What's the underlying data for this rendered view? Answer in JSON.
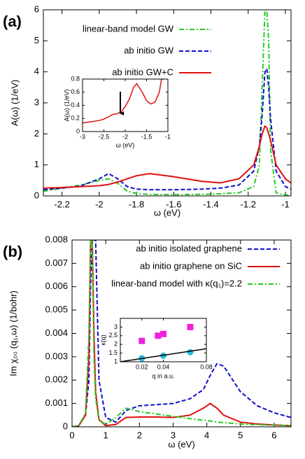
{
  "chart_data": [
    {
      "type": "line",
      "label": "(a)",
      "x_label": "ω (eV)",
      "y_label": "A(ω) (1/eV)",
      "x": [
        -2.3,
        -2.2,
        -2.1,
        -2.0,
        -1.95,
        -1.9,
        -1.85,
        -1.8,
        -1.73,
        -1.6,
        -1.45,
        -1.35,
        -1.25,
        -1.17,
        -1.14,
        -1.125,
        -1.11,
        -1.1,
        -1.09,
        -1.08,
        -1.05,
        -1.0,
        -0.97
      ],
      "xlim": [
        -2.3,
        -0.97
      ],
      "xticks": [
        -2.2,
        -2,
        -1.8,
        -1.6,
        -1.4,
        -1.2,
        -1
      ],
      "ylim": [
        0,
        6
      ],
      "yticks": [
        0,
        1,
        2,
        3,
        4,
        5,
        6
      ],
      "legend": "top-left",
      "series": [
        {
          "name": "linear-band model GW",
          "color": "#22cc22",
          "linestyle": "dashdot",
          "values": [
            0.15,
            0.25,
            0.35,
            0.5,
            0.55,
            0.4,
            0.15,
            0.08,
            0.05,
            0.04,
            0.05,
            0.07,
            0.1,
            0.3,
            1.0,
            3.5,
            6,
            6,
            5,
            1.5,
            0.1,
            0.03,
            0.02
          ]
        },
        {
          "name": "ab initio GW",
          "color": "#1010cc",
          "linestyle": "dashed",
          "values": [
            0.2,
            0.25,
            0.32,
            0.55,
            0.72,
            0.55,
            0.3,
            0.22,
            0.2,
            0.2,
            0.22,
            0.25,
            0.35,
            0.8,
            1.6,
            2.6,
            4.0,
            4.1,
            3.5,
            2.5,
            0.8,
            0.3,
            0.22
          ]
        },
        {
          "name": "ab initio GW+C",
          "color": "#e01010",
          "linestyle": "solid",
          "values": [
            0.25,
            0.27,
            0.3,
            0.33,
            0.37,
            0.45,
            0.55,
            0.65,
            0.72,
            0.62,
            0.47,
            0.42,
            0.55,
            1.0,
            1.6,
            2.0,
            2.25,
            2.2,
            2.0,
            1.8,
            1.0,
            0.55,
            0.42
          ]
        }
      ]
    },
    {
      "type": "line",
      "x_label": "ω (eV)",
      "y_label": "A(ω) (1/eV)",
      "x": [
        -3,
        -2.8,
        -2.6,
        -2.5,
        -2.4,
        -2.3,
        -2.2,
        -2.1,
        -2.0,
        -1.9,
        -1.8,
        -1.73,
        -1.6,
        -1.5,
        -1.4,
        -1.3,
        -1.2,
        -1.15,
        -1.1
      ],
      "xlim": [
        -3,
        -1
      ],
      "xticks": [
        -3,
        -2.5,
        -2,
        -1.5,
        -1
      ],
      "ylim": [
        0,
        0.8
      ],
      "yticks": [
        0,
        0.2,
        0.4,
        0.6,
        0.8
      ],
      "series": [
        {
          "color": "#e01010",
          "linestyle": "solid",
          "values": [
            0.13,
            0.15,
            0.17,
            0.19,
            0.22,
            0.26,
            0.27,
            0.3,
            0.38,
            0.5,
            0.68,
            0.73,
            0.6,
            0.47,
            0.42,
            0.45,
            0.6,
            0.8,
            0.8
          ]
        }
      ]
    },
    {
      "type": "line",
      "label": "(b)",
      "x_label": "ω  (eV)",
      "y_label": "Im χ₀₀ (q₁,ω) (1/bohr)",
      "x": [
        0,
        0.2,
        0.4,
        0.5,
        0.55,
        0.6,
        0.65,
        0.7,
        0.8,
        1.0,
        1.3,
        1.6,
        2,
        2.5,
        3,
        3.5,
        3.9,
        4.1,
        4.3,
        4.5,
        5,
        5.5,
        6,
        6.5
      ],
      "xlim": [
        0,
        6.5
      ],
      "xticks": [
        0,
        1,
        2,
        3,
        4,
        5,
        6
      ],
      "ylim": [
        0,
        0.008
      ],
      "yticks": [
        0,
        0.001,
        0.002,
        0.003,
        0.004,
        0.005,
        0.006,
        0.007,
        0.008
      ],
      "legend": "top-right",
      "series": [
        {
          "name": "ab initio isolated graphene",
          "color": "#1010cc",
          "linestyle": "dashed",
          "values": [
            0,
            5e-05,
            0.0005,
            0.002,
            0.006,
            0.008,
            0.008,
            0.008,
            0.002,
            0.0004,
            0.0002,
            0.0007,
            0.0009,
            0.00095,
            0.001,
            0.0012,
            0.0016,
            0.0022,
            0.0027,
            0.0026,
            0.0015,
            0.0009,
            0.0006,
            0.0004
          ]
        },
        {
          "name": "ab initio graphene on SiC",
          "color": "#e01010",
          "linestyle": "solid",
          "values": [
            0,
            5e-05,
            0.0005,
            0.003,
            0.008,
            0.008,
            0.004,
            0.0015,
            0.0003,
            5e-05,
            0.0001,
            0.0004,
            0.00042,
            0.00042,
            0.0004,
            0.0005,
            0.0008,
            0.001,
            0.0008,
            0.0005,
            0.0002,
            0.00012,
            8e-05,
            5e-05
          ]
        },
        {
          "name": "linear-band model with κ(q₁)=2.2",
          "color": "#22cc22",
          "linestyle": "dashdot",
          "values": [
            0,
            5e-05,
            0.0006,
            0.004,
            0.008,
            0.008,
            0.003,
            0.0012,
            0.0003,
            0.0001,
            0.0004,
            0.0008,
            0.00065,
            0.00055,
            0.00045,
            0.00035,
            0.00028,
            0.00025,
            0.0002,
            0.00018,
            0.00012,
            9e-05,
            7e-05,
            5e-05
          ]
        }
      ]
    },
    {
      "type": "scatter",
      "x_label": "q in a.u.",
      "y_label": "κ(q)",
      "xlim": [
        0,
        0.08
      ],
      "xticks": [
        0.02,
        0.04,
        0.08
      ],
      "ylim": [
        1,
        3.5
      ],
      "yticks": [
        1,
        1.5,
        2,
        2.5,
        3
      ],
      "series": [
        {
          "color": "#ee22dd",
          "marker": "square",
          "x": [
            0.02,
            0.035,
            0.04,
            0.065
          ],
          "values": [
            2.2,
            2.5,
            2.6,
            3.0
          ]
        },
        {
          "color": "#22bbdd",
          "marker": "circle",
          "x": [
            0.02,
            0.04,
            0.065
          ],
          "values": [
            1.2,
            1.35,
            1.55
          ]
        },
        {
          "color": "#000000",
          "linestyle": "solid",
          "x": [
            0,
            0.08
          ],
          "values": [
            1.0,
            1.75
          ]
        }
      ]
    }
  ]
}
